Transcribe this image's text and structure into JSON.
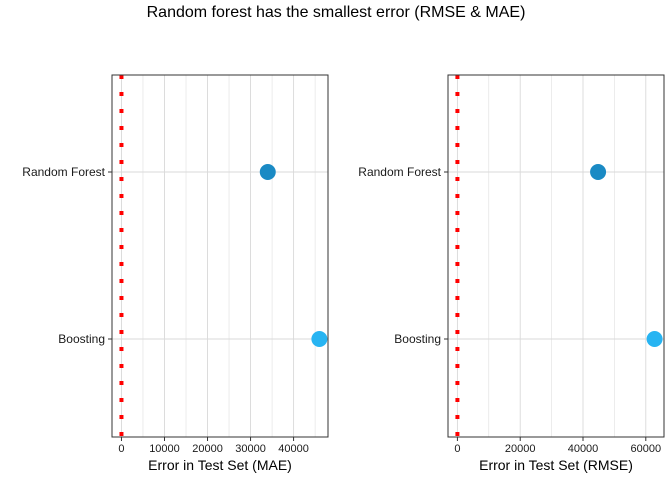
{
  "title": "Random forest has the smallest error (RMSE & MAE)",
  "colors": {
    "reference_line": "#ff0000",
    "point_random_forest": "#1a8ac4",
    "point_boosting": "#27b4f2",
    "grid": "#d9d9d9",
    "panel_border": "#333333"
  },
  "chart_data": [
    {
      "type": "scatter",
      "panel": "MAE",
      "title": "",
      "xlabel": "Error in Test Set (MAE)",
      "ylabel": "",
      "categories": [
        "Boosting",
        "Random Forest"
      ],
      "values": [
        46000,
        34000
      ],
      "xlim": [
        -2200,
        48000
      ],
      "x_ticks": [
        0,
        10000,
        20000,
        30000,
        40000
      ],
      "x_tick_labels": [
        "0",
        "10000",
        "20000",
        "30000",
        "40000"
      ],
      "reference_line": {
        "x": 0,
        "style": "dotted"
      },
      "grid": true
    },
    {
      "type": "scatter",
      "panel": "RMSE",
      "title": "",
      "xlabel": "Error in Test Set (RMSE)",
      "ylabel": "",
      "categories": [
        "Boosting",
        "Random Forest"
      ],
      "values": [
        62800,
        44800
      ],
      "xlim": [
        -3000,
        65800
      ],
      "x_ticks": [
        0,
        20000,
        40000,
        60000
      ],
      "x_tick_labels": [
        "0",
        "20000",
        "40000",
        "60000"
      ],
      "reference_line": {
        "x": 0,
        "style": "dotted"
      },
      "grid": true
    }
  ]
}
